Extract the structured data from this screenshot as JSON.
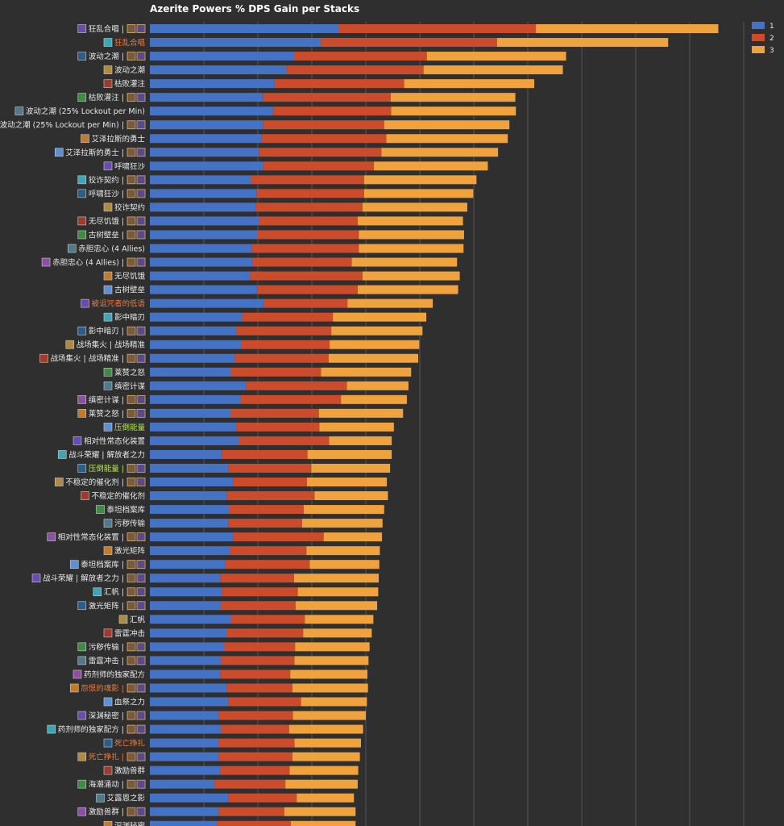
{
  "chart_data": {
    "type": "bar",
    "orientation": "horizontal",
    "stacked": true,
    "title": "Azerite Powers % DPS Gain per Stacks",
    "xlabel": "",
    "ylabel": "",
    "xlim": [
      0,
      11
    ],
    "grid": true,
    "legend_position": "top-right",
    "categories": [
      {
        "label": "狂乱合唱 |",
        "color": "#e8e8e8",
        "icon": "purple-rune-icon",
        "badges": 2
      },
      {
        "label": "狂乱合唱",
        "color": "#ee7a3c",
        "icon": "purple-rune-icon",
        "badges": 0
      },
      {
        "label": "波动之潮 |",
        "color": "#e8e8e8",
        "icon": "wave-icon",
        "badges": 2
      },
      {
        "label": "波动之潮",
        "color": "#e8e8e8",
        "icon": "wave-icon",
        "badges": 0
      },
      {
        "label": "枯败灌注",
        "color": "#e8e8e8",
        "icon": "blue-orb-icon",
        "badges": 0
      },
      {
        "label": "枯败灌注 |",
        "color": "#e8e8e8",
        "icon": "blue-orb-icon",
        "badges": 2
      },
      {
        "label": "波动之潮 (25% Lockout per Min)",
        "color": "#e8e8e8",
        "icon": "wave-icon",
        "badges": 0
      },
      {
        "label": "波动之潮 (25% Lockout per Min) |",
        "color": "#e8e8e8",
        "icon": "wave-icon",
        "badges": 2
      },
      {
        "label": "艾泽拉斯的勇士",
        "color": "#e8e8e8",
        "icon": "shield-icon",
        "badges": 0
      },
      {
        "label": "艾泽拉斯的勇士 |",
        "color": "#e8e8e8",
        "icon": "shield-icon",
        "badges": 2
      },
      {
        "label": "呼啸狂沙",
        "color": "#e8e8e8",
        "icon": "sand-icon",
        "badges": 0
      },
      {
        "label": "狡诈契约 |",
        "color": "#e8e8e8",
        "icon": "pact-icon",
        "badges": 2
      },
      {
        "label": "呼啸狂沙 |",
        "color": "#e8e8e8",
        "icon": "sand-icon",
        "badges": 2
      },
      {
        "label": "狡诈契约",
        "color": "#e8e8e8",
        "icon": "pact-icon",
        "badges": 0
      },
      {
        "label": "无尽饥饿 |",
        "color": "#e8e8e8",
        "icon": "hunger-icon",
        "badges": 2
      },
      {
        "label": "古树壁垒 |",
        "color": "#e8e8e8",
        "icon": "tree-icon",
        "badges": 2
      },
      {
        "label": "赤胆忠心 (4 Allies)",
        "color": "#e8e8e8",
        "icon": "loyal-icon",
        "badges": 0
      },
      {
        "label": "赤胆忠心 (4 Allies) |",
        "color": "#e8e8e8",
        "icon": "loyal-icon",
        "badges": 2
      },
      {
        "label": "无尽饥饿",
        "color": "#e8e8e8",
        "icon": "hunger-icon",
        "badges": 0
      },
      {
        "label": "古树壁垒",
        "color": "#e8e8e8",
        "icon": "tree-icon",
        "badges": 0
      },
      {
        "label": "被诅咒者的低语",
        "color": "#ee7a3c",
        "icon": "whisper-icon",
        "badges": 0
      },
      {
        "label": "影中暗刃",
        "color": "#e8e8e8",
        "icon": "blade-icon",
        "badges": 0
      },
      {
        "label": "影中暗刃 |",
        "color": "#e8e8e8",
        "icon": "blade-icon",
        "badges": 2
      },
      {
        "label": "战场集火 | 战场精准",
        "color": "#e8e8e8",
        "icon": "battle-icon",
        "badges": 0
      },
      {
        "label": "战场集火 | 战场精准 |",
        "color": "#e8e8e8",
        "icon": "battle-icon",
        "badges": 2
      },
      {
        "label": "莱赞之怒",
        "color": "#e8e8e8",
        "icon": "fury-icon",
        "badges": 0
      },
      {
        "label": "缜密计谋",
        "color": "#e8e8e8",
        "icon": "scheme-icon",
        "badges": 0
      },
      {
        "label": "缜密计谋 |",
        "color": "#e8e8e8",
        "icon": "scheme-icon",
        "badges": 2
      },
      {
        "label": "莱赞之怒 |",
        "color": "#e8e8e8",
        "icon": "fury-icon",
        "badges": 2
      },
      {
        "label": "压倒能量",
        "color": "#b5e853",
        "icon": "energy-icon",
        "badges": 0
      },
      {
        "label": "相对性常态化装置",
        "color": "#e8e8e8",
        "icon": "device-icon",
        "badges": 0
      },
      {
        "label": "战斗荣耀 | 解放者之力",
        "color": "#e8e8e8",
        "icon": "glory-icon",
        "badges": 0
      },
      {
        "label": "压倒能量 |",
        "color": "#b5e853",
        "icon": "energy-icon",
        "badges": 2
      },
      {
        "label": "不稳定的催化剂 |",
        "color": "#e8e8e8",
        "icon": "catalyst-icon",
        "badges": 2
      },
      {
        "label": "不稳定的催化剂",
        "color": "#e8e8e8",
        "icon": "catalyst-icon",
        "badges": 0
      },
      {
        "label": "泰坦档案库",
        "color": "#e8e8e8",
        "icon": "archive-icon",
        "badges": 0
      },
      {
        "label": "污秽传输",
        "color": "#e8e8e8",
        "icon": "transfer-icon",
        "badges": 0
      },
      {
        "label": "相对性常态化装置 |",
        "color": "#e8e8e8",
        "icon": "device-icon",
        "badges": 2
      },
      {
        "label": "激光矩阵",
        "color": "#e8e8e8",
        "icon": "laser-icon",
        "badges": 0
      },
      {
        "label": "泰坦档案库 |",
        "color": "#e8e8e8",
        "icon": "archive-icon",
        "badges": 2
      },
      {
        "label": "战斗荣耀 | 解放者之力 |",
        "color": "#e8e8e8",
        "icon": "glory-icon",
        "badges": 2
      },
      {
        "label": "汇帆 |",
        "color": "#e8e8e8",
        "icon": "sail-icon",
        "badges": 2
      },
      {
        "label": "激光矩阵 |",
        "color": "#e8e8e8",
        "icon": "laser-icon",
        "badges": 2
      },
      {
        "label": "汇帆",
        "color": "#e8e8e8",
        "icon": "sail-icon",
        "badges": 0
      },
      {
        "label": "雷霆冲击",
        "color": "#e8e8e8",
        "icon": "thunder-icon",
        "badges": 0
      },
      {
        "label": "污秽传输 |",
        "color": "#e8e8e8",
        "icon": "transfer-icon",
        "badges": 2
      },
      {
        "label": "雷霆冲击 |",
        "color": "#e8e8e8",
        "icon": "thunder-icon",
        "badges": 2
      },
      {
        "label": "药剂师的独家配方",
        "color": "#e8e8e8",
        "icon": "potion-icon",
        "badges": 0
      },
      {
        "label": "怨恨的魂影 |",
        "color": "#ee7a3c",
        "icon": "spite-icon",
        "badges": 2
      },
      {
        "label": "血祭之力",
        "color": "#e8e8e8",
        "icon": "blood-icon",
        "badges": 0
      },
      {
        "label": "深渊秘密 |",
        "color": "#e8e8e8",
        "icon": "abyss-icon",
        "badges": 2
      },
      {
        "label": "药剂师的独家配方 |",
        "color": "#e8e8e8",
        "icon": "potion-icon",
        "badges": 2
      },
      {
        "label": "死亡挣扎",
        "color": "#ee7a3c",
        "icon": "death-icon",
        "badges": 0
      },
      {
        "label": "死亡挣扎 |",
        "color": "#ee7a3c",
        "icon": "death-icon",
        "badges": 2
      },
      {
        "label": "激励兽群",
        "color": "#e8e8e8",
        "icon": "pack-icon",
        "badges": 0
      },
      {
        "label": "海潮涌动 |",
        "color": "#e8e8e8",
        "icon": "tide-icon",
        "badges": 2
      },
      {
        "label": "艾露恩之影",
        "color": "#e8e8e8",
        "icon": "elune-icon",
        "badges": 0
      },
      {
        "label": "激励兽群 |",
        "color": "#e8e8e8",
        "icon": "pack-icon",
        "badges": 2
      },
      {
        "label": "深渊秘密",
        "color": "#e8e8e8",
        "icon": "abyss-icon",
        "badges": 0
      }
    ],
    "series": [
      {
        "name": "1",
        "color": "#4472c4",
        "values": [
          3.5,
          3.17,
          2.67,
          2.54,
          2.31,
          2.1,
          2.28,
          2.1,
          2.07,
          2.02,
          2.1,
          1.88,
          1.98,
          1.96,
          2.03,
          2.0,
          1.89,
          1.9,
          1.86,
          1.99,
          2.11,
          1.71,
          1.6,
          1.7,
          1.58,
          1.5,
          1.78,
          1.68,
          1.5,
          1.61,
          1.65,
          1.34,
          1.46,
          1.54,
          1.43,
          1.47,
          1.46,
          1.54,
          1.48,
          1.39,
          1.31,
          1.33,
          1.32,
          1.5,
          1.42,
          1.38,
          1.32,
          1.31,
          1.42,
          1.46,
          1.28,
          1.32,
          1.28,
          1.28,
          1.3,
          1.2,
          1.46,
          1.28,
          1.25
        ]
      },
      {
        "name": "2",
        "color": "#cc4b2b",
        "values": [
          3.65,
          3.26,
          2.46,
          2.53,
          2.4,
          2.36,
          2.19,
          2.24,
          2.31,
          2.27,
          2.05,
          2.09,
          1.99,
          1.98,
          1.82,
          1.87,
          1.98,
          1.84,
          2.08,
          1.86,
          1.55,
          1.68,
          1.76,
          1.63,
          1.73,
          1.67,
          1.87,
          1.86,
          1.63,
          1.53,
          1.67,
          1.58,
          1.53,
          1.37,
          1.62,
          1.38,
          1.36,
          1.68,
          1.42,
          1.57,
          1.36,
          1.41,
          1.38,
          1.37,
          1.42,
          1.31,
          1.36,
          1.29,
          1.22,
          1.34,
          1.37,
          1.26,
          1.4,
          1.36,
          1.29,
          1.31,
          1.26,
          1.21,
          1.36
        ]
      },
      {
        "name": "3",
        "color": "#f0a23c",
        "values": [
          3.38,
          3.17,
          2.58,
          2.58,
          2.41,
          2.31,
          2.31,
          2.32,
          2.25,
          2.16,
          2.11,
          2.08,
          2.02,
          1.94,
          1.95,
          1.95,
          1.94,
          1.95,
          1.8,
          1.86,
          1.58,
          1.73,
          1.69,
          1.66,
          1.66,
          1.67,
          1.14,
          1.22,
          1.56,
          1.38,
          1.16,
          1.56,
          1.46,
          1.48,
          1.36,
          1.49,
          1.49,
          1.08,
          1.36,
          1.29,
          1.57,
          1.49,
          1.51,
          1.27,
          1.27,
          1.38,
          1.37,
          1.43,
          1.4,
          1.22,
          1.35,
          1.37,
          1.23,
          1.25,
          1.27,
          1.34,
          1.06,
          1.32,
          1.2
        ]
      }
    ]
  }
}
